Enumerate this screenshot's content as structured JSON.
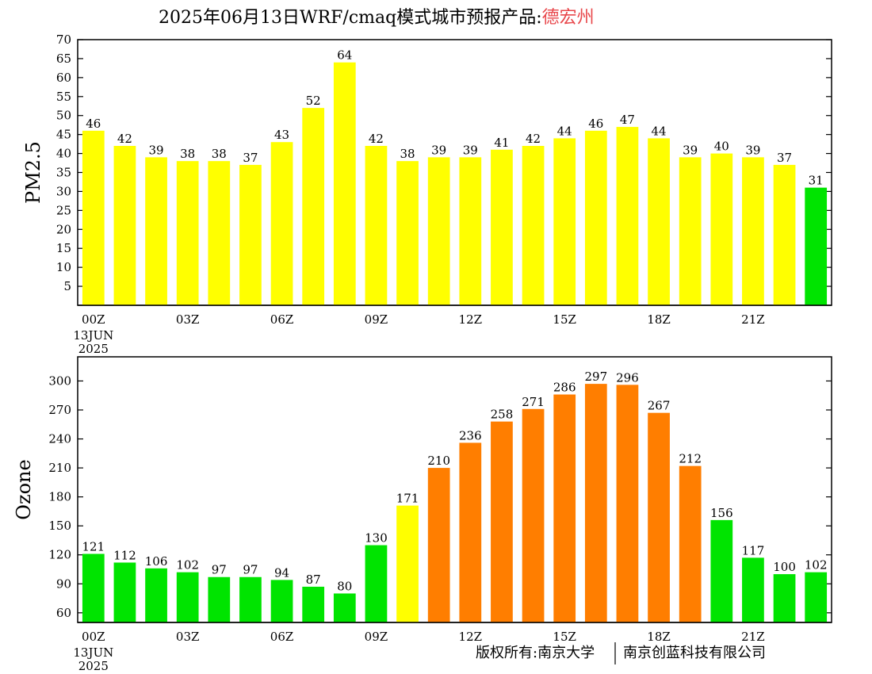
{
  "title": {
    "prefix": "2025年06月13日WRF/cmaq模式城市预报产品:",
    "city": "德宏州",
    "city_color": "#e8474b"
  },
  "credit": {
    "left": "版权所有:南京大学",
    "right": "南京创蓝科技有限公司"
  },
  "colors": {
    "green": "#00e400",
    "yellow": "#ffff00",
    "orange": "#ff7e00"
  },
  "chart_data": [
    {
      "type": "bar",
      "ylabel": "PM2.5",
      "ylim": [
        0,
        70
      ],
      "yticks": [
        5,
        10,
        15,
        20,
        25,
        30,
        35,
        40,
        45,
        50,
        55,
        60,
        65,
        70
      ],
      "x_tick_labels": [
        {
          "index": 0,
          "label": "00Z",
          "sub": [
            "13JUN",
            "2025"
          ]
        },
        {
          "index": 3,
          "label": "03Z"
        },
        {
          "index": 6,
          "label": "06Z"
        },
        {
          "index": 9,
          "label": "09Z"
        },
        {
          "index": 12,
          "label": "12Z"
        },
        {
          "index": 15,
          "label": "15Z"
        },
        {
          "index": 18,
          "label": "18Z"
        },
        {
          "index": 21,
          "label": "21Z"
        }
      ],
      "values": [
        46,
        42,
        39,
        38,
        38,
        37,
        43,
        52,
        64,
        42,
        38,
        39,
        39,
        41,
        42,
        44,
        46,
        47,
        44,
        39,
        40,
        39,
        37,
        31
      ],
      "bar_colors": [
        "yellow",
        "yellow",
        "yellow",
        "yellow",
        "yellow",
        "yellow",
        "yellow",
        "yellow",
        "yellow",
        "yellow",
        "yellow",
        "yellow",
        "yellow",
        "yellow",
        "yellow",
        "yellow",
        "yellow",
        "yellow",
        "yellow",
        "yellow",
        "yellow",
        "yellow",
        "yellow",
        "green"
      ]
    },
    {
      "type": "bar",
      "ylabel": "Ozone",
      "ylim": [
        50,
        325
      ],
      "yticks": [
        60,
        90,
        120,
        150,
        180,
        210,
        240,
        270,
        300
      ],
      "x_tick_labels": [
        {
          "index": 0,
          "label": "00Z",
          "sub": [
            "13JUN",
            "2025"
          ]
        },
        {
          "index": 3,
          "label": "03Z"
        },
        {
          "index": 6,
          "label": "06Z"
        },
        {
          "index": 9,
          "label": "09Z"
        },
        {
          "index": 12,
          "label": "12Z"
        },
        {
          "index": 15,
          "label": "15Z"
        },
        {
          "index": 18,
          "label": "18Z"
        },
        {
          "index": 21,
          "label": "21Z"
        }
      ],
      "values": [
        121,
        112,
        106,
        102,
        97,
        97,
        94,
        87,
        80,
        130,
        171,
        210,
        236,
        258,
        271,
        286,
        297,
        296,
        267,
        212,
        156,
        117,
        100,
        102
      ],
      "bar_colors": [
        "green",
        "green",
        "green",
        "green",
        "green",
        "green",
        "green",
        "green",
        "green",
        "green",
        "yellow",
        "orange",
        "orange",
        "orange",
        "orange",
        "orange",
        "orange",
        "orange",
        "orange",
        "orange",
        "green",
        "green",
        "green",
        "green"
      ]
    }
  ]
}
